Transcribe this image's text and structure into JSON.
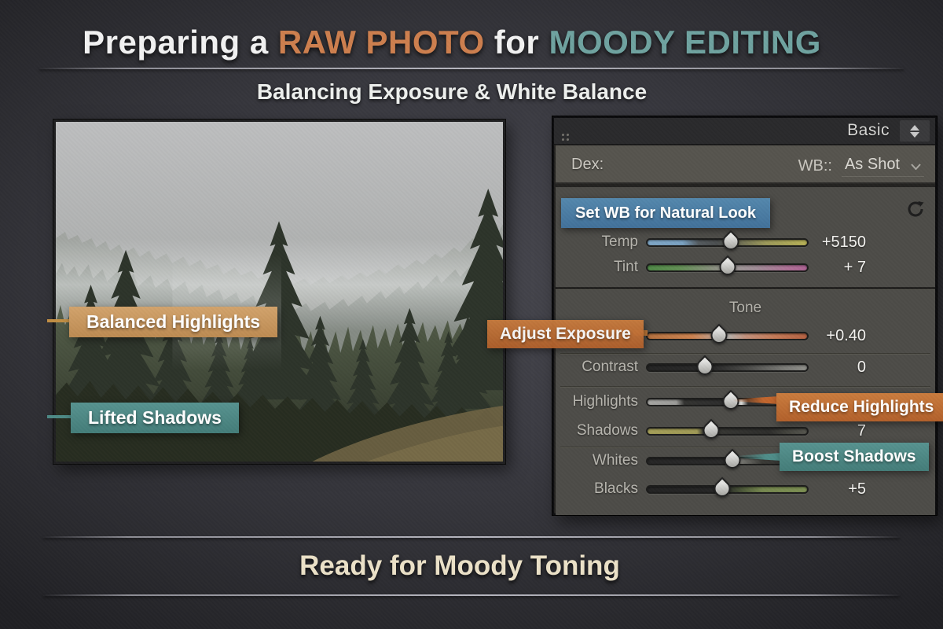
{
  "header": {
    "title_parts": [
      {
        "text": "Preparing a ",
        "color": "#f2f2f2"
      },
      {
        "text": "RAW PHOTO",
        "color": "#cd7f4e"
      },
      {
        "text": " for ",
        "color": "#f2f2f2"
      },
      {
        "text": "MOODY EDITING",
        "color": "#6fa3a0"
      }
    ],
    "subtitle": "Balancing Exposure & White Balance"
  },
  "photo": {
    "callouts": [
      {
        "label": "Balanced Highlights",
        "color": "#c89a63"
      },
      {
        "label": "Lifted Shadows",
        "color": "#4d8a86"
      }
    ]
  },
  "panel": {
    "title": "Basic",
    "treatment_label": "Dex:",
    "wb_label": "WB::",
    "wb_value": "As Shot",
    "wb_callout": "Set WB for Natural Look",
    "tone_label": "Tone",
    "sliders": {
      "temp": {
        "label": "Temp",
        "value": "+5150",
        "handle_pct": 52
      },
      "tint": {
        "label": "Tint",
        "value": "+ 7",
        "handle_pct": 50
      },
      "exposure": {
        "label": "",
        "value": "+0.40",
        "handle_pct": 45
      },
      "contrast": {
        "label": "Contrast",
        "value": "0",
        "handle_pct": 36
      },
      "highlights": {
        "label": "Highlights",
        "value": "",
        "handle_pct": 52
      },
      "shadows": {
        "label": "Shadows",
        "value": "7",
        "handle_pct": 40
      },
      "whites": {
        "label": "Whites",
        "value": "",
        "handle_pct": 53
      },
      "blacks": {
        "label": "Blacks",
        "value": "+5",
        "handle_pct": 47
      }
    },
    "slider_callouts": {
      "exposure": "Adjust Exposure",
      "highlights": "Reduce Highlights",
      "whites": "Boost Shadows"
    }
  },
  "footer": "Ready for Moody Toning",
  "colors": {
    "accent_orange": "#cd7f4e",
    "accent_teal": "#6fa3a0",
    "callout_orange": "#c2662e",
    "callout_tan": "#c89a63",
    "callout_teal": "#4f8d89",
    "callout_blue": "#4a7da3",
    "footer_cream": "#ece2c8"
  }
}
